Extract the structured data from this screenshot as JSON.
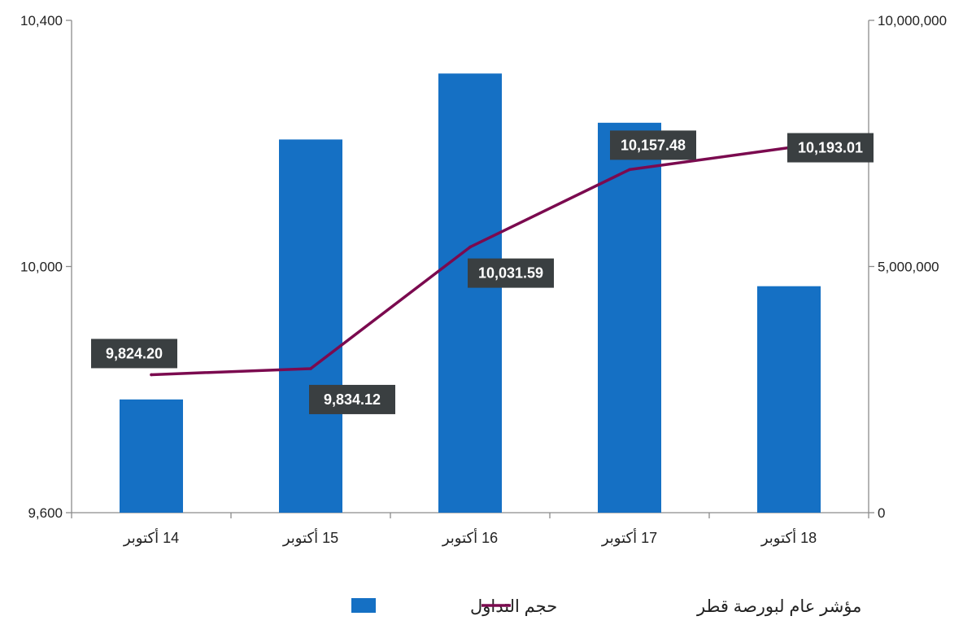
{
  "chart_data": {
    "type": "bar",
    "categories": [
      "14 أكتوبر",
      "15 أكتوبر",
      "16 أكتوبر",
      "17 أكتوبر",
      "18 أكتوبر"
    ],
    "series": [
      {
        "name": "حجم التداول",
        "type": "bar",
        "axis": "right",
        "color": "#1570c4",
        "values": [
          2300000,
          7580000,
          8920000,
          7920000,
          4600000
        ]
      },
      {
        "name": "مؤشر عام لبورصة قطر",
        "type": "line",
        "axis": "left",
        "color": "#7b0a4f",
        "values": [
          9824.2,
          9834.12,
          10031.59,
          10157.48,
          10193.01
        ],
        "labels": [
          "9,824.20",
          "9,834.12",
          "10,031.59",
          "10,157.48",
          "10,193.01"
        ],
        "label_positions": [
          "above",
          "below",
          "below",
          "above",
          "right"
        ]
      }
    ],
    "y_left": {
      "ylim": [
        9600,
        10400
      ],
      "ticks": [
        9600,
        10000,
        10400
      ],
      "tick_labels": [
        "9,600",
        "10,000",
        "10,400"
      ]
    },
    "y_right": {
      "ylim": [
        0,
        10000000
      ],
      "ticks": [
        0,
        5000000,
        10000000
      ],
      "tick_labels": [
        "0",
        "5,000,000",
        "10,000,000"
      ]
    },
    "label_box_color": "#3a3f41",
    "grid": false,
    "legend": {
      "placement": "bottom-center"
    }
  }
}
